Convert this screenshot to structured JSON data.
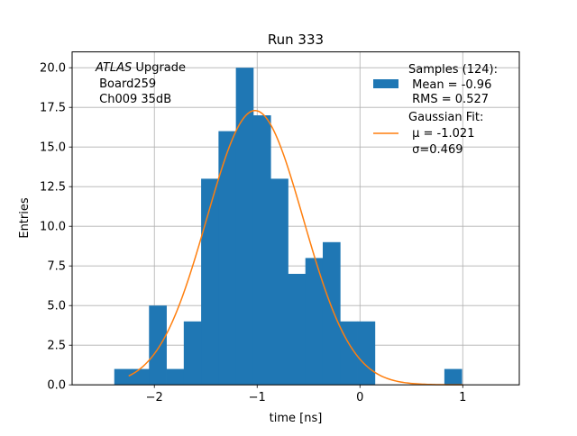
{
  "chart_data": {
    "type": "histogram",
    "title": "Run 333",
    "xlabel": "time [ns]",
    "ylabel": "Entries",
    "xlim": [
      -2.8,
      1.55
    ],
    "ylim": [
      0,
      21
    ],
    "grid": true,
    "x_ticks": [
      {
        "value": -2,
        "label": "−2"
      },
      {
        "value": -1,
        "label": "−1"
      },
      {
        "value": 0,
        "label": "0"
      },
      {
        "value": 1,
        "label": "1"
      }
    ],
    "y_ticks": [
      {
        "value": 0,
        "label": "0.0"
      },
      {
        "value": 2.5,
        "label": "2.5"
      },
      {
        "value": 5,
        "label": "5.0"
      },
      {
        "value": 7.5,
        "label": "7.5"
      },
      {
        "value": 10,
        "label": "10.0"
      },
      {
        "value": 12.5,
        "label": "12.5"
      },
      {
        "value": 15,
        "label": "15.0"
      },
      {
        "value": 17.5,
        "label": "17.5"
      },
      {
        "value": 20,
        "label": "20.0"
      }
    ],
    "bin_width": 0.169,
    "bins_left": [
      -2.39,
      -2.221,
      -2.052,
      -1.883,
      -1.714,
      -1.545,
      -1.376,
      -1.207,
      -1.038,
      -0.869,
      -0.7,
      -0.531,
      -0.362,
      -0.193,
      -0.024,
      0.145,
      0.314,
      0.483,
      0.652,
      0.821
    ],
    "counts": [
      1,
      1,
      5,
      1,
      4,
      13,
      16,
      20,
      17,
      13,
      7,
      8,
      9,
      4,
      4,
      0,
      0,
      0,
      0,
      1
    ],
    "bar_color": "#1f77b4",
    "fit": {
      "type": "gaussian",
      "mu": -1.021,
      "sigma": 0.469,
      "amplitude": 17.3,
      "x_range": [
        -2.25,
        1.0
      ],
      "color": "#ff7f0e"
    },
    "legend": {
      "placement": "top-right",
      "entries": [
        {
          "kind": "bar",
          "lines": [
            "Samples (124):",
            " Mean = -0.96",
            " RMS = 0.527"
          ]
        },
        {
          "kind": "line",
          "lines": [
            "Gaussian Fit:",
            " μ = -1.021",
            " σ=0.469"
          ]
        }
      ]
    },
    "annotation": {
      "placement": "top-left",
      "experiment": "ATLAS",
      "lines": [
        "Upgrade",
        " Board259",
        " Ch009 35dB"
      ]
    }
  }
}
